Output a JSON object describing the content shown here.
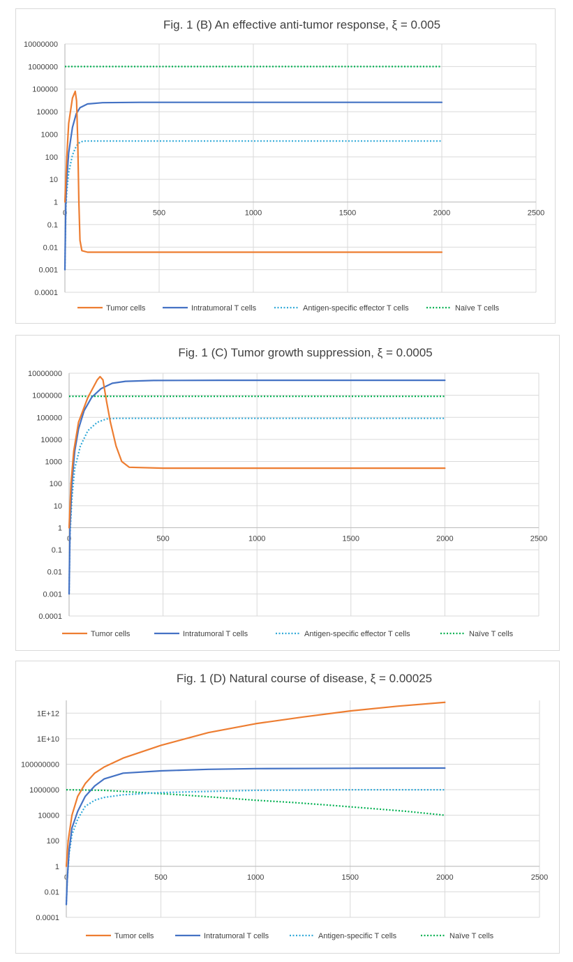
{
  "chart_data": [
    {
      "type": "line",
      "title": "Fig. 1 (B) An effective anti-tumor response, ξ = 0.005",
      "xlabel": "",
      "ylabel": "",
      "y_scale": "log",
      "xlim": [
        0,
        2500
      ],
      "ylim": [
        0.0001,
        10000000
      ],
      "x_ticks": [
        "0",
        "500",
        "1000",
        "1500",
        "2000",
        "2500"
      ],
      "y_ticks": [
        "10000000",
        "1000000",
        "100000",
        "10000",
        "1000",
        "100",
        "10",
        "1",
        "0.1",
        "0.01",
        "0.001",
        "0.0001"
      ],
      "grid": true,
      "legend_position": "bottom",
      "series": [
        {
          "name": "Tumor cells",
          "color": "#ED7D31",
          "style": "solid",
          "points": [
            [
              0,
              1
            ],
            [
              10,
              100
            ],
            [
              20,
              3000
            ],
            [
              40,
              40000
            ],
            [
              55,
              80000
            ],
            [
              62,
              30000
            ],
            [
              68,
              500
            ],
            [
              74,
              1
            ],
            [
              80,
              0.02
            ],
            [
              90,
              0.007
            ],
            [
              120,
              0.006
            ],
            [
              500,
              0.006
            ],
            [
              1000,
              0.006
            ],
            [
              1500,
              0.006
            ],
            [
              2000,
              0.006
            ]
          ]
        },
        {
          "name": "Intratumoral T cells",
          "color": "#4472C4",
          "style": "solid",
          "points": [
            [
              0,
              0.001
            ],
            [
              5,
              1
            ],
            [
              10,
              10
            ],
            [
              20,
              150
            ],
            [
              40,
              2000
            ],
            [
              60,
              8000
            ],
            [
              80,
              15000
            ],
            [
              120,
              22000
            ],
            [
              200,
              25000
            ],
            [
              400,
              26000
            ],
            [
              1000,
              26000
            ],
            [
              2000,
              26000
            ]
          ]
        },
        {
          "name": "Antigen-specific effector T cells",
          "color": "#31A9D8",
          "style": "dotted",
          "points": [
            [
              0,
              0.001
            ],
            [
              5,
              0.5
            ],
            [
              10,
              3
            ],
            [
              20,
              20
            ],
            [
              40,
              120
            ],
            [
              60,
              300
            ],
            [
              80,
              450
            ],
            [
              100,
              500
            ],
            [
              150,
              500
            ],
            [
              500,
              500
            ],
            [
              1000,
              500
            ],
            [
              2000,
              500
            ]
          ]
        },
        {
          "name": "Naïve T cells",
          "color": "#00B050",
          "style": "dotted",
          "points": [
            [
              0,
              1000000
            ],
            [
              500,
              1000000
            ],
            [
              1000,
              1000000
            ],
            [
              1500,
              1000000
            ],
            [
              2000,
              1000000
            ]
          ]
        }
      ]
    },
    {
      "type": "line",
      "title": "Fig. 1 (C) Tumor growth suppression, ξ = 0.0005",
      "xlabel": "",
      "ylabel": "",
      "y_scale": "log",
      "xlim": [
        0,
        2500
      ],
      "ylim": [
        0.0001,
        10000000
      ],
      "x_ticks": [
        "0",
        "500",
        "1000",
        "1500",
        "2000",
        "2500"
      ],
      "y_ticks": [
        "10000000",
        "1000000",
        "100000",
        "10000",
        "1000",
        "100",
        "10",
        "1",
        "0.1",
        "0.01",
        "0.001",
        "0.0001"
      ],
      "grid": true,
      "legend_position": "bottom",
      "series": [
        {
          "name": "Tumor cells",
          "color": "#ED7D31",
          "style": "solid",
          "points": [
            [
              0,
              1
            ],
            [
              10,
              100
            ],
            [
              25,
              3000
            ],
            [
              50,
              60000
            ],
            [
              100,
              800000
            ],
            [
              150,
              5000000
            ],
            [
              165,
              7000000
            ],
            [
              180,
              5000000
            ],
            [
              200,
              500000
            ],
            [
              220,
              60000
            ],
            [
              250,
              5000
            ],
            [
              280,
              1000
            ],
            [
              320,
              550
            ],
            [
              500,
              500
            ],
            [
              1000,
              500
            ],
            [
              1500,
              500
            ],
            [
              2000,
              500
            ]
          ]
        },
        {
          "name": "Intratumoral T cells",
          "color": "#4472C4",
          "style": "solid",
          "points": [
            [
              0,
              0.001
            ],
            [
              5,
              1
            ],
            [
              15,
              100
            ],
            [
              30,
              3000
            ],
            [
              50,
              30000
            ],
            [
              80,
              200000
            ],
            [
              120,
              800000
            ],
            [
              170,
              2000000
            ],
            [
              230,
              3500000
            ],
            [
              300,
              4300000
            ],
            [
              450,
              4700000
            ],
            [
              800,
              4800000
            ],
            [
              2000,
              4800000
            ]
          ]
        },
        {
          "name": "Antigen-specific effector T cells",
          "color": "#31A9D8",
          "style": "dotted",
          "points": [
            [
              0,
              0.001
            ],
            [
              5,
              0.5
            ],
            [
              15,
              20
            ],
            [
              30,
              500
            ],
            [
              60,
              5000
            ],
            [
              100,
              25000
            ],
            [
              150,
              60000
            ],
            [
              200,
              85000
            ],
            [
              250,
              90000
            ],
            [
              500,
              90000
            ],
            [
              2000,
              90000
            ]
          ]
        },
        {
          "name": "Naïve T cells",
          "color": "#00B050",
          "style": "dotted",
          "points": [
            [
              0,
              900000
            ],
            [
              500,
              900000
            ],
            [
              1000,
              900000
            ],
            [
              1500,
              900000
            ],
            [
              2000,
              900000
            ]
          ]
        }
      ]
    },
    {
      "type": "line",
      "title": "Fig. 1 (D) Natural course of disease, ξ = 0.00025",
      "xlabel": "",
      "ylabel": "",
      "y_scale": "log",
      "xlim": [
        0,
        2500
      ],
      "ylim": [
        0.0001,
        10000000000000
      ],
      "x_ticks": [
        "0",
        "500",
        "1000",
        "1500",
        "2000",
        "2500"
      ],
      "y_ticks": [
        "1E+12",
        "1E+10",
        "100000000",
        "1000000",
        "10000",
        "100",
        "1",
        "0.01",
        "0.0001"
      ],
      "y_tick_values": [
        1000000000000.0,
        10000000000.0,
        100000000.0,
        1000000.0,
        10000.0,
        100,
        1,
        0.01,
        0.0001
      ],
      "grid": true,
      "legend_position": "bottom",
      "series": [
        {
          "name": "Tumor cells",
          "color": "#ED7D31",
          "style": "solid",
          "points": [
            [
              0,
              1
            ],
            [
              10,
              100
            ],
            [
              30,
              10000
            ],
            [
              60,
              300000
            ],
            [
              100,
              3000000
            ],
            [
              150,
              20000000
            ],
            [
              200,
              60000000
            ],
            [
              300,
              300000000
            ],
            [
              500,
              3000000000
            ],
            [
              750,
              30000000000
            ],
            [
              1000,
              150000000000
            ],
            [
              1250,
              500000000000
            ],
            [
              1500,
              1500000000000
            ],
            [
              1750,
              3500000000000
            ],
            [
              2000,
              7000000000000
            ]
          ]
        },
        {
          "name": "Intratumoral T cells",
          "color": "#4472C4",
          "style": "solid",
          "points": [
            [
              0,
              0.001
            ],
            [
              5,
              0.1
            ],
            [
              15,
              20
            ],
            [
              30,
              1000
            ],
            [
              60,
              20000
            ],
            [
              100,
              300000
            ],
            [
              150,
              2000000
            ],
            [
              200,
              7000000
            ],
            [
              300,
              20000000
            ],
            [
              500,
              30000000
            ],
            [
              750,
              40000000
            ],
            [
              1000,
              45000000
            ],
            [
              1500,
              48000000
            ],
            [
              2000,
              50000000
            ]
          ]
        },
        {
          "name": "Antigen-specific T cells",
          "color": "#31A9D8",
          "style": "dotted",
          "points": [
            [
              0,
              0.001
            ],
            [
              5,
              0.1
            ],
            [
              15,
              10
            ],
            [
              30,
              300
            ],
            [
              60,
              5000
            ],
            [
              100,
              50000
            ],
            [
              150,
              150000
            ],
            [
              200,
              250000
            ],
            [
              300,
              400000
            ],
            [
              500,
              600000
            ],
            [
              1000,
              900000
            ],
            [
              1500,
              1000000
            ],
            [
              2000,
              1000000
            ]
          ]
        },
        {
          "name": "Naïve T cells",
          "color": "#00B050",
          "style": "dotted",
          "points": [
            [
              0,
              1000000
            ],
            [
              200,
              900000
            ],
            [
              400,
              600000
            ],
            [
              600,
              400000
            ],
            [
              800,
              250000
            ],
            [
              1000,
              150000
            ],
            [
              1200,
              100000
            ],
            [
              1400,
              60000
            ],
            [
              1600,
              35000
            ],
            [
              1800,
              20000
            ],
            [
              2000,
              10000
            ]
          ]
        }
      ]
    }
  ]
}
